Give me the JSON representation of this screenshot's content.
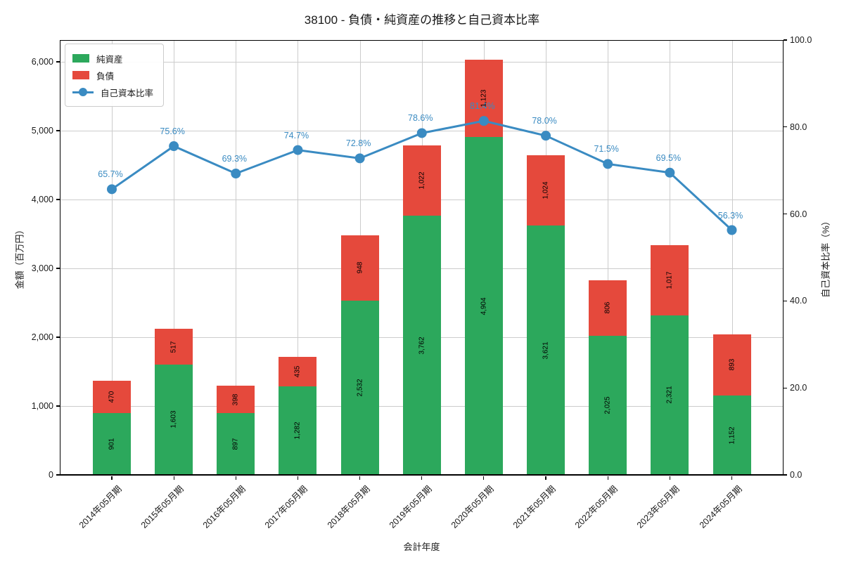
{
  "title": "38100 - 負債・純資産の推移と自己資本比率",
  "legend": {
    "items": [
      {
        "label": "純資産",
        "marker": "swatch",
        "color": "#2ca85c"
      },
      {
        "label": "負債",
        "marker": "swatch",
        "color": "#e5493c"
      },
      {
        "label": "自己資本比率",
        "marker": "line-dot",
        "color": "#3a8bc2"
      }
    ]
  },
  "axes": {
    "x": {
      "title": "会計年度",
      "tick_labels": [
        "2014年05月期",
        "2015年05月期",
        "2016年05月期",
        "2017年05月期",
        "2018年05月期",
        "2019年05月期",
        "2020年05月期",
        "2021年05月期",
        "2022年05月期",
        "2023年05月期",
        "2024年05月期"
      ]
    },
    "left": {
      "title": "金額（百万円）",
      "tick_values": [
        0,
        1000,
        2000,
        3000,
        4000,
        5000,
        6000
      ],
      "tick_labels": [
        "0",
        "1,000",
        "2,000",
        "3,000",
        "4,000",
        "5,000",
        "6,000"
      ],
      "lim": [
        0,
        6316
      ]
    },
    "right": {
      "title": "自己資本比率（%）",
      "tick_values": [
        0,
        20,
        40,
        60,
        80,
        100
      ],
      "tick_labels": [
        "0.0",
        "20.0",
        "40.0",
        "60.0",
        "80.0",
        "100.0"
      ],
      "lim": [
        0,
        100
      ]
    }
  },
  "chart_data": {
    "type": "bar",
    "subtype": "stacked-bar-with-line",
    "title": "38100 - 負債・純資産の推移と自己資本比率",
    "xlabel": "会計年度",
    "ylabel_left": "金額（百万円）",
    "ylabel_right": "自己資本比率（%）",
    "ylim_left": [
      0,
      6316
    ],
    "ylim_right": [
      0,
      100
    ],
    "grid": true,
    "legend_position": "upper-left",
    "categories": [
      "2014年05月期",
      "2015年05月期",
      "2016年05月期",
      "2017年05月期",
      "2018年05月期",
      "2019年05月期",
      "2020年05月期",
      "2021年05月期",
      "2022年05月期",
      "2023年05月期",
      "2024年05月期"
    ],
    "series": [
      {
        "name": "純資産",
        "type": "bar",
        "stack": "total",
        "axis": "left",
        "color": "#2ca85c",
        "values": [
          901,
          1603,
          897,
          1282,
          2532,
          3762,
          4904,
          3621,
          2025,
          2321,
          1152
        ],
        "labels": [
          "901",
          "1,603",
          "897",
          "1,282",
          "2,532",
          "3,762",
          "4,904",
          "3,621",
          "2,025",
          "2,321",
          "1,152"
        ]
      },
      {
        "name": "負債",
        "type": "bar",
        "stack": "total",
        "axis": "left",
        "color": "#e5493c",
        "values": [
          470,
          517,
          398,
          435,
          948,
          1022,
          1123,
          1024,
          806,
          1017,
          893
        ],
        "labels": [
          "470",
          "517",
          "398",
          "435",
          "948",
          "1,022",
          "1,123",
          "1,024",
          "806",
          "1,017",
          "893"
        ]
      },
      {
        "name": "自己資本比率",
        "type": "line",
        "axis": "right",
        "color": "#3a8bc2",
        "values": [
          65.7,
          75.6,
          69.3,
          74.7,
          72.8,
          78.6,
          81.4,
          78.0,
          71.5,
          69.5,
          56.3
        ],
        "labels": [
          "65.7%",
          "75.6%",
          "69.3%",
          "74.7%",
          "72.8%",
          "78.6%",
          "81.4%",
          "78.0%",
          "71.5%",
          "69.5%",
          "56.3%"
        ]
      }
    ]
  },
  "colors": {
    "background": "#ffffff",
    "grid": "#cccccc",
    "spine": "#000000",
    "bar_label_text": "#000000",
    "pct_label_text": "#3a8bc2"
  }
}
